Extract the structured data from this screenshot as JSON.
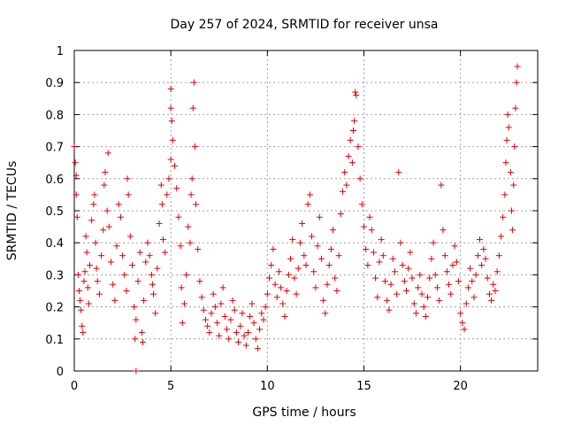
{
  "chart_data": {
    "type": "scatter",
    "title": "Day 257 of 2024, SRMTID for receiver unsa",
    "xlabel": "GPS time / hours",
    "ylabel": "SRMTID / TECUs",
    "xlim": [
      0,
      24
    ],
    "ylim": [
      0,
      1
    ],
    "xticks": [
      0,
      5,
      10,
      15,
      20
    ],
    "xtick_labels": [
      "0",
      "5",
      "10",
      "15",
      "20"
    ],
    "yticks": [
      0,
      0.1,
      0.2,
      0.3,
      0.4,
      0.5,
      0.6,
      0.7,
      0.8,
      0.9,
      1
    ],
    "ytick_labels": [
      "0",
      "0.1",
      "0.2",
      "0.3",
      "0.4",
      "0.5",
      "0.6",
      "0.7",
      "0.8",
      "0.9",
      "1"
    ],
    "grid": true,
    "marker": "+",
    "color": "#e00000",
    "series": [
      {
        "name": "SRMTID",
        "points": [
          [
            0.0,
            0.7
          ],
          [
            0.05,
            0.65
          ],
          [
            0.1,
            0.61
          ],
          [
            0.1,
            0.55
          ],
          [
            0.15,
            0.48
          ],
          [
            0.2,
            0.3
          ],
          [
            0.25,
            0.25
          ],
          [
            0.3,
            0.22
          ],
          [
            0.35,
            0.19
          ],
          [
            0.4,
            0.14
          ],
          [
            0.45,
            0.12
          ],
          [
            0.5,
            0.28
          ],
          [
            0.55,
            0.31
          ],
          [
            0.6,
            0.42
          ],
          [
            0.65,
            0.37
          ],
          [
            0.7,
            0.26
          ],
          [
            0.75,
            0.21
          ],
          [
            0.8,
            0.33
          ],
          [
            0.9,
            0.47
          ],
          [
            1.0,
            0.52
          ],
          [
            1.05,
            0.55
          ],
          [
            1.1,
            0.4
          ],
          [
            1.15,
            0.32
          ],
          [
            1.2,
            0.28
          ],
          [
            1.3,
            0.24
          ],
          [
            1.4,
            0.36
          ],
          [
            1.5,
            0.44
          ],
          [
            1.55,
            0.58
          ],
          [
            1.6,
            0.62
          ],
          [
            1.7,
            0.5
          ],
          [
            1.75,
            0.68
          ],
          [
            1.8,
            0.45
          ],
          [
            1.9,
            0.34
          ],
          [
            2.0,
            0.27
          ],
          [
            2.1,
            0.22
          ],
          [
            2.2,
            0.39
          ],
          [
            2.3,
            0.52
          ],
          [
            2.4,
            0.48
          ],
          [
            2.5,
            0.36
          ],
          [
            2.6,
            0.3
          ],
          [
            2.7,
            0.25
          ],
          [
            2.75,
            0.6
          ],
          [
            2.8,
            0.55
          ],
          [
            2.9,
            0.42
          ],
          [
            3.0,
            0.33
          ],
          [
            3.1,
            0.2
          ],
          [
            3.15,
            0.1
          ],
          [
            3.2,
            0.16
          ],
          [
            3.3,
            0.28
          ],
          [
            3.4,
            0.37
          ],
          [
            3.5,
            0.12
          ],
          [
            3.55,
            0.09
          ],
          [
            3.6,
            0.22
          ],
          [
            3.7,
            0.34
          ],
          [
            3.8,
            0.4
          ],
          [
            3.9,
            0.36
          ],
          [
            4.0,
            0.3
          ],
          [
            4.05,
            0.27
          ],
          [
            4.1,
            0.24
          ],
          [
            4.2,
            0.18
          ],
          [
            4.3,
            0.32
          ],
          [
            4.4,
            0.46
          ],
          [
            4.5,
            0.58
          ],
          [
            4.55,
            0.52
          ],
          [
            4.6,
            0.41
          ],
          [
            4.7,
            0.37
          ],
          [
            4.8,
            0.55
          ],
          [
            4.9,
            0.6
          ],
          [
            5.0,
            0.66
          ],
          [
            5.0,
            0.82
          ],
          [
            5.0,
            0.88
          ],
          [
            5.05,
            0.78
          ],
          [
            5.1,
            0.72
          ],
          [
            5.2,
            0.64
          ],
          [
            5.3,
            0.57
          ],
          [
            5.4,
            0.48
          ],
          [
            5.5,
            0.39
          ],
          [
            5.55,
            0.26
          ],
          [
            5.6,
            0.15
          ],
          [
            5.7,
            0.21
          ],
          [
            5.8,
            0.3
          ],
          [
            5.9,
            0.45
          ],
          [
            6.0,
            0.4
          ],
          [
            6.05,
            0.55
          ],
          [
            6.1,
            0.6
          ],
          [
            6.15,
            0.82
          ],
          [
            6.2,
            0.9
          ],
          [
            6.25,
            0.7
          ],
          [
            6.3,
            0.52
          ],
          [
            6.4,
            0.38
          ],
          [
            6.5,
            0.28
          ],
          [
            6.6,
            0.23
          ],
          [
            6.7,
            0.19
          ],
          [
            6.8,
            0.16
          ],
          [
            6.9,
            0.14
          ],
          [
            7.0,
            0.12
          ],
          [
            7.1,
            0.18
          ],
          [
            7.2,
            0.24
          ],
          [
            7.3,
            0.2
          ],
          [
            7.4,
            0.15
          ],
          [
            7.5,
            0.11
          ],
          [
            7.6,
            0.21
          ],
          [
            7.7,
            0.26
          ],
          [
            7.8,
            0.17
          ],
          [
            7.9,
            0.13
          ],
          [
            8.0,
            0.1
          ],
          [
            8.1,
            0.16
          ],
          [
            8.2,
            0.22
          ],
          [
            8.3,
            0.19
          ],
          [
            8.4,
            0.12
          ],
          [
            8.5,
            0.09
          ],
          [
            8.6,
            0.14
          ],
          [
            8.7,
            0.18
          ],
          [
            8.8,
            0.11
          ],
          [
            8.9,
            0.08
          ],
          [
            9.0,
            0.12
          ],
          [
            9.1,
            0.17
          ],
          [
            9.2,
            0.21
          ],
          [
            9.3,
            0.15
          ],
          [
            9.4,
            0.1
          ],
          [
            9.5,
            0.07
          ],
          [
            9.6,
            0.13
          ],
          [
            9.7,
            0.18
          ],
          [
            9.8,
            0.16
          ],
          [
            9.9,
            0.2
          ],
          [
            10.0,
            0.24
          ],
          [
            10.1,
            0.29
          ],
          [
            10.2,
            0.33
          ],
          [
            10.3,
            0.38
          ],
          [
            10.4,
            0.27
          ],
          [
            10.5,
            0.23
          ],
          [
            10.6,
            0.31
          ],
          [
            10.7,
            0.26
          ],
          [
            10.8,
            0.21
          ],
          [
            10.9,
            0.17
          ],
          [
            11.0,
            0.25
          ],
          [
            11.1,
            0.3
          ],
          [
            11.2,
            0.35
          ],
          [
            11.3,
            0.41
          ],
          [
            11.4,
            0.29
          ],
          [
            11.5,
            0.24
          ],
          [
            11.6,
            0.32
          ],
          [
            11.7,
            0.4
          ],
          [
            11.8,
            0.46
          ],
          [
            11.9,
            0.36
          ],
          [
            12.0,
            0.33
          ],
          [
            12.1,
            0.52
          ],
          [
            12.2,
            0.55
          ],
          [
            12.3,
            0.42
          ],
          [
            12.4,
            0.31
          ],
          [
            12.5,
            0.26
          ],
          [
            12.6,
            0.39
          ],
          [
            12.7,
            0.48
          ],
          [
            12.8,
            0.35
          ],
          [
            12.9,
            0.22
          ],
          [
            13.0,
            0.18
          ],
          [
            13.1,
            0.27
          ],
          [
            13.2,
            0.33
          ],
          [
            13.3,
            0.38
          ],
          [
            13.4,
            0.44
          ],
          [
            13.5,
            0.29
          ],
          [
            13.6,
            0.25
          ],
          [
            13.7,
            0.36
          ],
          [
            13.8,
            0.49
          ],
          [
            13.9,
            0.56
          ],
          [
            14.0,
            0.62
          ],
          [
            14.1,
            0.58
          ],
          [
            14.2,
            0.67
          ],
          [
            14.3,
            0.72
          ],
          [
            14.4,
            0.65
          ],
          [
            14.45,
            0.75
          ],
          [
            14.5,
            0.78
          ],
          [
            14.55,
            0.87
          ],
          [
            14.6,
            0.86
          ],
          [
            14.7,
            0.7
          ],
          [
            14.8,
            0.6
          ],
          [
            14.9,
            0.52
          ],
          [
            15.0,
            0.45
          ],
          [
            15.1,
            0.38
          ],
          [
            15.2,
            0.33
          ],
          [
            15.3,
            0.48
          ],
          [
            15.4,
            0.44
          ],
          [
            15.5,
            0.37
          ],
          [
            15.6,
            0.29
          ],
          [
            15.7,
            0.23
          ],
          [
            15.8,
            0.34
          ],
          [
            15.9,
            0.41
          ],
          [
            16.0,
            0.36
          ],
          [
            16.1,
            0.28
          ],
          [
            16.2,
            0.22
          ],
          [
            16.3,
            0.19
          ],
          [
            16.4,
            0.27
          ],
          [
            16.5,
            0.35
          ],
          [
            16.6,
            0.31
          ],
          [
            16.7,
            0.24
          ],
          [
            16.8,
            0.62
          ],
          [
            16.9,
            0.4
          ],
          [
            17.0,
            0.33
          ],
          [
            17.1,
            0.28
          ],
          [
            17.2,
            0.25
          ],
          [
            17.3,
            0.32
          ],
          [
            17.4,
            0.37
          ],
          [
            17.5,
            0.29
          ],
          [
            17.6,
            0.21
          ],
          [
            17.7,
            0.18
          ],
          [
            17.8,
            0.26
          ],
          [
            17.9,
            0.3
          ],
          [
            18.0,
            0.24
          ],
          [
            18.1,
            0.2
          ],
          [
            18.2,
            0.17
          ],
          [
            18.3,
            0.23
          ],
          [
            18.4,
            0.29
          ],
          [
            18.5,
            0.35
          ],
          [
            18.6,
            0.4
          ],
          [
            18.7,
            0.3
          ],
          [
            18.8,
            0.26
          ],
          [
            18.9,
            0.22
          ],
          [
            19.0,
            0.58
          ],
          [
            19.1,
            0.44
          ],
          [
            19.2,
            0.36
          ],
          [
            19.3,
            0.31
          ],
          [
            19.4,
            0.27
          ],
          [
            19.5,
            0.24
          ],
          [
            19.6,
            0.33
          ],
          [
            19.7,
            0.39
          ],
          [
            19.8,
            0.34
          ],
          [
            19.9,
            0.28
          ],
          [
            20.0,
            0.18
          ],
          [
            20.1,
            0.15
          ],
          [
            20.2,
            0.13
          ],
          [
            20.3,
            0.21
          ],
          [
            20.4,
            0.26
          ],
          [
            20.5,
            0.32
          ],
          [
            20.6,
            0.28
          ],
          [
            20.7,
            0.23
          ],
          [
            20.8,
            0.3
          ],
          [
            20.9,
            0.36
          ],
          [
            21.0,
            0.41
          ],
          [
            21.1,
            0.33
          ],
          [
            21.2,
            0.38
          ],
          [
            21.3,
            0.35
          ],
          [
            21.4,
            0.29
          ],
          [
            21.5,
            0.24
          ],
          [
            21.6,
            0.22
          ],
          [
            21.7,
            0.27
          ],
          [
            21.8,
            0.25
          ],
          [
            21.9,
            0.31
          ],
          [
            22.0,
            0.36
          ],
          [
            22.1,
            0.42
          ],
          [
            22.2,
            0.48
          ],
          [
            22.3,
            0.55
          ],
          [
            22.35,
            0.65
          ],
          [
            22.4,
            0.72
          ],
          [
            22.45,
            0.8
          ],
          [
            22.5,
            0.76
          ],
          [
            22.6,
            0.62
          ],
          [
            22.65,
            0.5
          ],
          [
            22.7,
            0.44
          ],
          [
            22.75,
            0.58
          ],
          [
            22.8,
            0.7
          ],
          [
            22.85,
            0.82
          ],
          [
            22.9,
            0.9
          ],
          [
            22.95,
            0.95
          ],
          [
            3.2,
            0.0
          ]
        ]
      }
    ]
  }
}
